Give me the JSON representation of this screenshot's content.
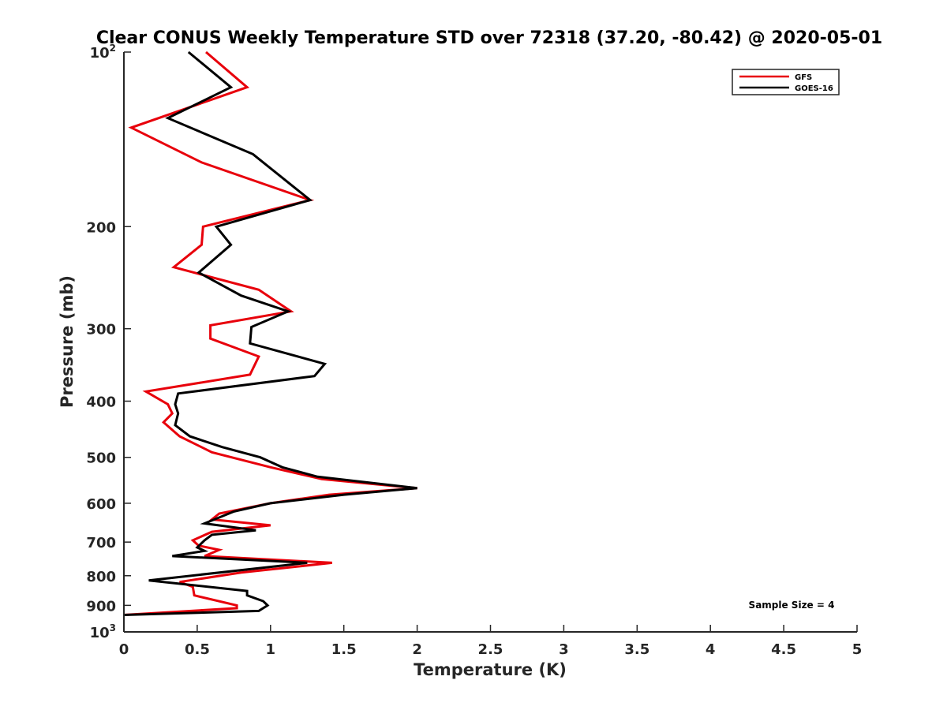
{
  "chart_data": {
    "type": "line",
    "title": "Clear CONUS Weekly Temperature STD over 72318 (37.20, -80.42) @ 2020-05-01",
    "xlabel": "Temperature (K)",
    "ylabel": "Pressure (mb)",
    "xlim": [
      0,
      5
    ],
    "ylim": [
      100,
      1000
    ],
    "y_scale": "log",
    "y_reversed": true,
    "grid": false,
    "legend_position": "top-right",
    "x_ticks": [
      0,
      0.5,
      1,
      1.5,
      2,
      2.5,
      3,
      3.5,
      4,
      4.5,
      5
    ],
    "x_tick_labels": [
      "0",
      "0.5",
      "1",
      "1.5",
      "2",
      "2.5",
      "3",
      "3.5",
      "4",
      "4.5",
      "5"
    ],
    "y_ticks": [
      {
        "value": 100,
        "base": "10",
        "exp": "2"
      },
      {
        "value": 200,
        "label": "200"
      },
      {
        "value": 300,
        "label": "300"
      },
      {
        "value": 400,
        "label": "400"
      },
      {
        "value": 500,
        "label": "500"
      },
      {
        "value": 600,
        "label": "600"
      },
      {
        "value": 700,
        "label": "700"
      },
      {
        "value": 800,
        "label": "800"
      },
      {
        "value": 900,
        "label": "900"
      },
      {
        "value": 1000,
        "base": "10",
        "exp": "3"
      }
    ],
    "annotation": "Sample Size = 4",
    "series": [
      {
        "name": "GFS",
        "color": "#e8000b",
        "points": [
          [
            0.56,
            100
          ],
          [
            0.84,
            115
          ],
          [
            0.05,
            135
          ],
          [
            0.53,
            155
          ],
          [
            1.27,
            180
          ],
          [
            0.54,
            200
          ],
          [
            0.53,
            215
          ],
          [
            0.34,
            235
          ],
          [
            0.92,
            257
          ],
          [
            1.14,
            280
          ],
          [
            0.59,
            296
          ],
          [
            0.59,
            312
          ],
          [
            0.92,
            335
          ],
          [
            0.86,
            360
          ],
          [
            0.15,
            385
          ],
          [
            0.3,
            405
          ],
          [
            0.33,
            420
          ],
          [
            0.27,
            435
          ],
          [
            0.38,
            460
          ],
          [
            0.6,
            490
          ],
          [
            1.0,
            520
          ],
          [
            1.35,
            545
          ],
          [
            2.0,
            565
          ],
          [
            1.4,
            580
          ],
          [
            1.0,
            600
          ],
          [
            0.65,
            625
          ],
          [
            0.6,
            640
          ],
          [
            1.0,
            655
          ],
          [
            0.6,
            672
          ],
          [
            0.47,
            695
          ],
          [
            0.51,
            710
          ],
          [
            0.65,
            722
          ],
          [
            0.55,
            740
          ],
          [
            1.42,
            760
          ],
          [
            0.8,
            790
          ],
          [
            0.38,
            820
          ],
          [
            0.47,
            836
          ],
          [
            0.48,
            865
          ],
          [
            0.77,
            900
          ],
          [
            0.77,
            910
          ],
          [
            0.0,
            935
          ]
        ]
      },
      {
        "name": "GOES-16",
        "color": "#000000",
        "points": [
          [
            0.44,
            100
          ],
          [
            0.73,
            115
          ],
          [
            0.3,
            130
          ],
          [
            0.88,
            150
          ],
          [
            1.27,
            180
          ],
          [
            0.63,
            200
          ],
          [
            0.73,
            215
          ],
          [
            0.51,
            240
          ],
          [
            0.8,
            263
          ],
          [
            1.12,
            280
          ],
          [
            0.87,
            298
          ],
          [
            0.86,
            318
          ],
          [
            1.37,
            345
          ],
          [
            1.3,
            362
          ],
          [
            0.37,
            388
          ],
          [
            0.35,
            405
          ],
          [
            0.37,
            420
          ],
          [
            0.35,
            440
          ],
          [
            0.45,
            460
          ],
          [
            0.67,
            480
          ],
          [
            0.93,
            500
          ],
          [
            1.08,
            520
          ],
          [
            1.32,
            540
          ],
          [
            2.0,
            565
          ],
          [
            1.5,
            580
          ],
          [
            1.0,
            600
          ],
          [
            0.75,
            620
          ],
          [
            0.55,
            650
          ],
          [
            0.9,
            668
          ],
          [
            0.6,
            680
          ],
          [
            0.55,
            695
          ],
          [
            0.5,
            715
          ],
          [
            0.55,
            725
          ],
          [
            0.33,
            740
          ],
          [
            1.25,
            760
          ],
          [
            0.17,
            815
          ],
          [
            0.84,
            850
          ],
          [
            0.84,
            865
          ],
          [
            0.95,
            885
          ],
          [
            0.98,
            900
          ],
          [
            0.92,
            920
          ],
          [
            0.0,
            935
          ]
        ]
      }
    ]
  }
}
